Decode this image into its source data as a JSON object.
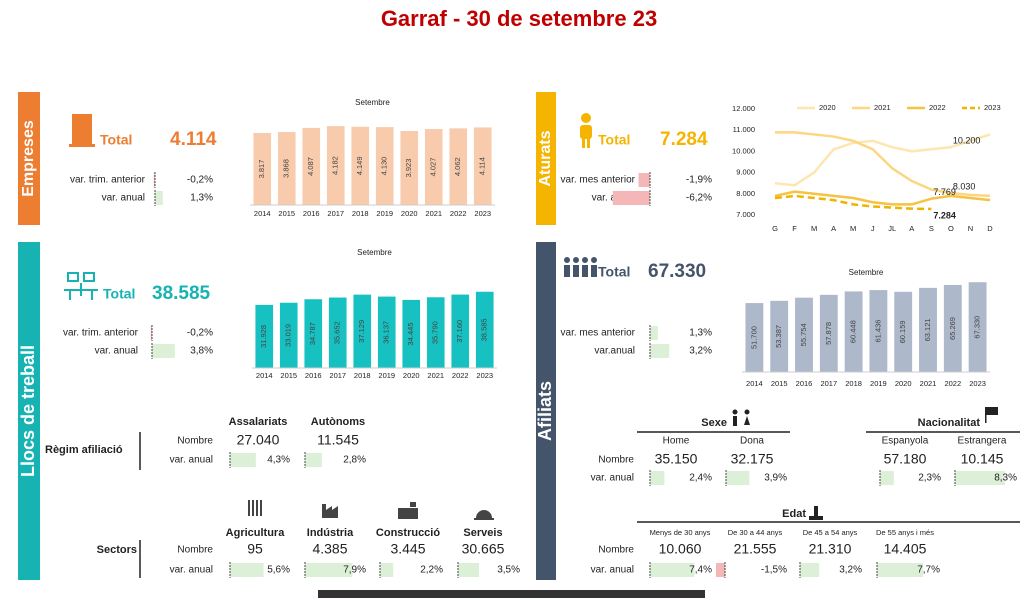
{
  "title": "Garraf - 30 de setembre 23",
  "panels": {
    "empreses": {
      "label": "Empreses",
      "total_label": "Total",
      "total": "4.114",
      "rows": [
        {
          "label": "var. trim. anterior",
          "var": {
            "value": -0.2,
            "label": "-0,2%"
          }
        },
        {
          "label": "var. anual",
          "var": {
            "value": 1.3,
            "label": "1,3%"
          }
        }
      ]
    },
    "aturats": {
      "label": "Aturats",
      "total_label": "Total",
      "total": "7.284",
      "rows": [
        {
          "label": "var. mes anterior",
          "var": {
            "value": -1.9,
            "label": "-1,9%"
          }
        },
        {
          "label": "var. anual",
          "var": {
            "value": -6.2,
            "label": "-6,2%"
          }
        }
      ]
    },
    "llocs": {
      "label": "Llocs de treball",
      "total_label": "Total",
      "total": "38.585",
      "rows": [
        {
          "label": "var. trim. anterior",
          "var": {
            "value": -0.2,
            "label": "-0,2%"
          }
        },
        {
          "label": "var. anual",
          "var": {
            "value": 3.8,
            "label": "3,8%"
          }
        }
      ]
    },
    "afiliats": {
      "label": "Afiliats",
      "total_label": "Total",
      "total": "67.330",
      "rows": [
        {
          "label": "var. mes anterior",
          "var": {
            "value": 1.3,
            "label": "1,3%"
          }
        },
        {
          "label": "var.anual",
          "var": {
            "value": 3.2,
            "label": "3,2%"
          }
        }
      ]
    }
  },
  "tables": {
    "regim": {
      "title": "Règim afiliació",
      "columns": [
        "Assalariats",
        "Autònoms"
      ],
      "rows": [
        "Nombre",
        "var. anual"
      ],
      "nombre": [
        "27.040",
        "11.545"
      ],
      "var": [
        {
          "value": 4.3,
          "label": "4,3%"
        },
        {
          "value": 2.8,
          "label": "2,8%"
        }
      ]
    },
    "sectors": {
      "title": "Sectors",
      "columns": [
        "Agricultura",
        "Indústria",
        "Construcció",
        "Serveis"
      ],
      "rows": [
        "Nombre",
        "var. anual"
      ],
      "nombre": [
        "95",
        "4.385",
        "3.445",
        "30.665"
      ],
      "var": [
        {
          "value": 5.6,
          "label": "5,6%"
        },
        {
          "value": 7.9,
          "label": "7,9%"
        },
        {
          "value": 2.2,
          "label": "2,2%"
        },
        {
          "value": 3.5,
          "label": "3,5%"
        }
      ]
    },
    "sexe": {
      "title": "Sexe",
      "columns": [
        "Home",
        "Dona"
      ],
      "rows": [
        "Nombre",
        "var. anual"
      ],
      "nombre": [
        "35.150",
        "32.175"
      ],
      "var": [
        {
          "value": 2.4,
          "label": "2,4%"
        },
        {
          "value": 3.9,
          "label": "3,9%"
        }
      ]
    },
    "nacionalitat": {
      "title": "Nacionalitat",
      "columns": [
        "Espanyola",
        "Estrangera"
      ],
      "nombre": [
        "57.180",
        "10.145"
      ],
      "var": [
        {
          "value": 2.3,
          "label": "2,3%"
        },
        {
          "value": 8.3,
          "label": "8,3%"
        }
      ]
    },
    "edat": {
      "title": "Edat",
      "columns": [
        "Menys de 30 anys",
        "De 30 a 44 anys",
        "De 45 a 54 anys",
        "De 55 anys i més"
      ],
      "rows": [
        "Nombre",
        "var. anual"
      ],
      "nombre": [
        "10.060",
        "21.555",
        "21.310",
        "14.405"
      ],
      "var": [
        {
          "value": 7.4,
          "label": "7,4%"
        },
        {
          "value": -1.5,
          "label": "-1,5%"
        },
        {
          "value": 3.2,
          "label": "3,2%"
        },
        {
          "value": 7.7,
          "label": "7,7%"
        }
      ]
    }
  },
  "chart_data": [
    {
      "type": "bar",
      "title": "Setembre",
      "categories": [
        "2014",
        "2015",
        "2016",
        "2017",
        "2018",
        "2019",
        "2020",
        "2021",
        "2022",
        "2023"
      ],
      "values": [
        3817,
        3868,
        4087,
        4182,
        4149,
        4130,
        3923,
        4027,
        4062,
        4114
      ],
      "value_labels": [
        "3.817",
        "3.868",
        "4.087",
        "4.182",
        "4.149",
        "4.130",
        "3.923",
        "4.027",
        "4.062",
        "4.114"
      ],
      "color": "#f8cbad",
      "ylim": [
        0,
        4400
      ]
    },
    {
      "type": "bar",
      "title": "Setembre",
      "categories": [
        "2014",
        "2015",
        "2016",
        "2017",
        "2018",
        "2019",
        "2020",
        "2021",
        "2022",
        "2023"
      ],
      "values": [
        31928,
        33019,
        34787,
        35652,
        37129,
        36137,
        34445,
        35790,
        37160,
        38585
      ],
      "value_labels": [
        "31.928",
        "33.019",
        "34.787",
        "35.652",
        "37.129",
        "36.137",
        "34.445",
        "35.790",
        "37.160",
        "38.585"
      ],
      "color": "#17c1c1",
      "ylim": [
        0,
        42000
      ]
    },
    {
      "type": "line",
      "categories": [
        "G",
        "F",
        "M",
        "A",
        "M",
        "J",
        "JL",
        "A",
        "S",
        "O",
        "N",
        "D"
      ],
      "ylim": [
        7000,
        12000
      ],
      "yticks": [
        {
          "value": 7000,
          "label": "7.000"
        },
        {
          "value": 8000,
          "label": "8.000"
        },
        {
          "value": 9000,
          "label": "9.000"
        },
        {
          "value": 10000,
          "label": "10.000"
        },
        {
          "value": 11000,
          "label": "11.000"
        },
        {
          "value": 12000,
          "label": "12.000"
        }
      ],
      "series": [
        {
          "name": "2020",
          "color": "#fde6b0",
          "style": "solid",
          "values": [
            8500,
            8400,
            9000,
            10100,
            10400,
            10500,
            10200,
            10000,
            10100,
            10200,
            10500,
            10800
          ],
          "value_labels": [
            null,
            null,
            null,
            null,
            null,
            null,
            null,
            null,
            null,
            "10.200",
            null,
            null
          ]
        },
        {
          "name": "2021",
          "color": "#fcd680",
          "style": "solid",
          "values": [
            10900,
            10900,
            10800,
            10700,
            10500,
            10100,
            9200,
            8600,
            8200,
            8030,
            7950,
            7900
          ],
          "value_labels": [
            null,
            null,
            null,
            null,
            null,
            null,
            null,
            null,
            null,
            "8.030",
            null,
            null
          ]
        },
        {
          "name": "2022",
          "color": "#f5c242",
          "style": "solid",
          "values": [
            7900,
            8100,
            8000,
            7900,
            7800,
            7600,
            7500,
            7500,
            7769,
            7900,
            7800,
            7700
          ],
          "value_labels": [
            null,
            null,
            null,
            null,
            null,
            null,
            null,
            null,
            "7.769",
            null,
            null,
            null
          ]
        },
        {
          "name": "2023",
          "color": "#f0b400",
          "style": "dashed",
          "values": [
            7800,
            7900,
            7800,
            7700,
            7500,
            7400,
            7350,
            7300,
            7284,
            null,
            null,
            null
          ],
          "value_labels": [
            null,
            null,
            null,
            null,
            null,
            null,
            null,
            null,
            "7.284",
            null,
            null,
            null
          ]
        }
      ]
    },
    {
      "type": "bar",
      "title": "Setembre",
      "categories": [
        "2014",
        "2015",
        "2016",
        "2017",
        "2018",
        "2019",
        "2020",
        "2021",
        "2022",
        "2023"
      ],
      "values": [
        51700,
        53387,
        55754,
        57878,
        60448,
        61436,
        60159,
        63121,
        65269,
        67330
      ],
      "value_labels": [
        "51.700",
        "53.387",
        "55.754",
        "57.878",
        "60.448",
        "61.436",
        "60.159",
        "63.121",
        "65.269",
        "67.330"
      ],
      "color": "#adb9ca",
      "ylim": [
        0,
        72000
      ]
    }
  ]
}
